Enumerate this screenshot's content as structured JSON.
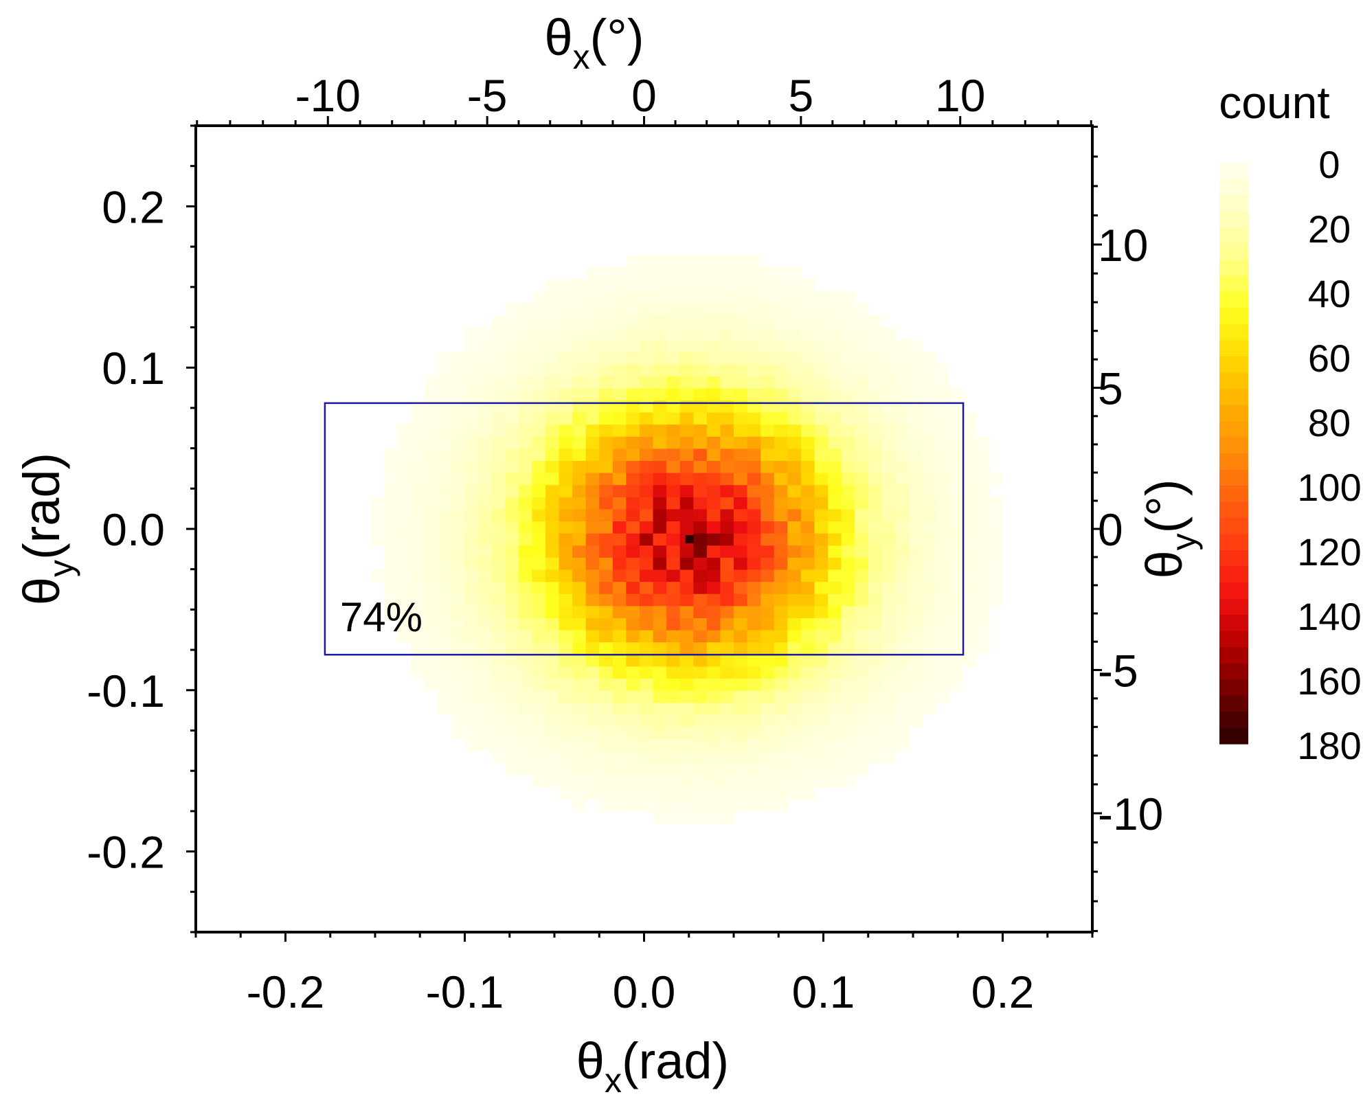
{
  "chart_data": {
    "type": "heatmap",
    "title": "",
    "xlabel": {
      "symbol": "θ",
      "sub": "x",
      "unit": "(rad)"
    },
    "ylabel": {
      "symbol": "θ",
      "sub": "y",
      "unit": "(rad)"
    },
    "x2label": {
      "symbol": "θ",
      "sub": "x",
      "unit": "(°)"
    },
    "y2label": {
      "symbol": "θ",
      "sub": "y",
      "unit": "(°)"
    },
    "xlim": [
      -0.25,
      0.25
    ],
    "ylim": [
      -0.25,
      0.25
    ],
    "x_ticks": [
      -0.2,
      -0.1,
      0.0,
      0.1,
      0.2
    ],
    "x_tick_labels": [
      "-0.2",
      "-0.1",
      "0.0",
      "0.1",
      "0.2"
    ],
    "y_ticks": [
      -0.2,
      -0.1,
      0.0,
      0.1,
      0.2
    ],
    "y_tick_labels": [
      "-0.2",
      "-0.1",
      "0.0",
      "0.1",
      "0.2"
    ],
    "x2_ticks_deg": [
      -10,
      -5,
      0,
      5,
      10
    ],
    "x2_tick_labels": [
      "-10",
      "-5",
      "0",
      "5",
      "10"
    ],
    "y2_ticks_deg": [
      -10,
      -5,
      0,
      5,
      10
    ],
    "y2_tick_labels": [
      "-10",
      "-5",
      "0",
      "5",
      "10"
    ],
    "colorbar": {
      "title": "count",
      "min": 0,
      "max": 180,
      "ticks": [
        0,
        20,
        40,
        60,
        80,
        100,
        120,
        140,
        160,
        180
      ],
      "tick_labels": [
        "0",
        "20",
        "40",
        "60",
        "80",
        "100",
        "120",
        "140",
        "160",
        "180"
      ],
      "colors": [
        "#fffff0",
        "#ffffc0",
        "#ffff8a",
        "#ffff20",
        "#ffd800",
        "#ffb000",
        "#ff8c0a",
        "#ff6010",
        "#ff3810",
        "#f01010",
        "#b40000",
        "#6e0000",
        "#2a0000"
      ]
    },
    "distribution": {
      "description_free": true,
      "peak_count": 180,
      "center_x": 0.025,
      "center_y": -0.006,
      "sigma": 0.058
    },
    "rectangle": {
      "x": [
        -0.178,
        0.178
      ],
      "y": [
        -0.078,
        0.078
      ],
      "color": "#1a1aa0",
      "label": "74%"
    },
    "grid": false,
    "legend": "none"
  }
}
